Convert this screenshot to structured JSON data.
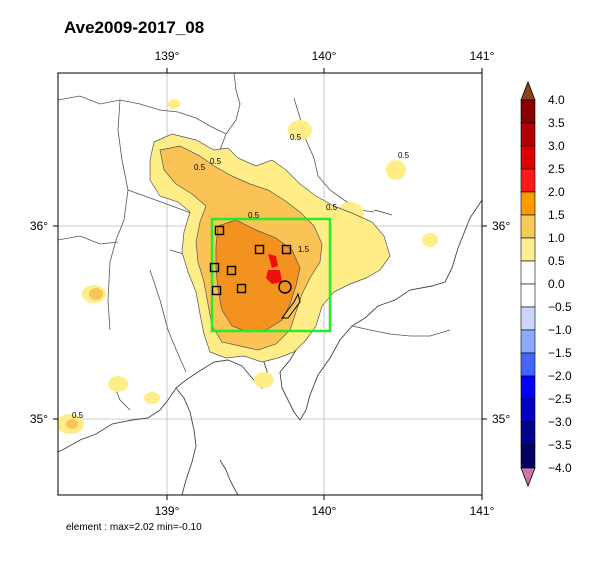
{
  "title": "Ave2009-2017_08",
  "footer": "element : max=2.02 min=-0.10",
  "map": {
    "lon_ticks": [
      "139°",
      "140°",
      "141°"
    ],
    "lat_ticks": [
      "36°",
      "35°"
    ],
    "contour_labels": [
      "0.5",
      "0.5",
      "0.5",
      "0.5",
      "1.5",
      "0.5",
      "0.5",
      "0.5"
    ],
    "colors": {
      "c_05_10": "#ffee88",
      "c_10_15": "#fbc256",
      "c_15_20": "#f3921e",
      "c_20_25": "#ee1010",
      "box": "#22ee22"
    }
  },
  "colorbar": {
    "labels": [
      "4.0",
      "3.5",
      "3.0",
      "2.5",
      "2.0",
      "1.5",
      "1.0",
      "0.5",
      "0.0",
      "−0.5",
      "−1.0",
      "−1.5",
      "−2.0",
      "−2.5",
      "−3.0",
      "−3.5",
      "−4.0"
    ],
    "colors": [
      "#8b0000",
      "#b20000",
      "#dd0000",
      "#ff1a1a",
      "#ff9900",
      "#f7c95a",
      "#ffef90",
      "#ffffff",
      "#ffffff",
      "#c9d7ff",
      "#8ca8ff",
      "#4466ff",
      "#0000ff",
      "#0000c2",
      "#00008a",
      "#000060"
    ],
    "top_triangle": "#8b4513",
    "bottom_triangle": "#cc77aa"
  }
}
